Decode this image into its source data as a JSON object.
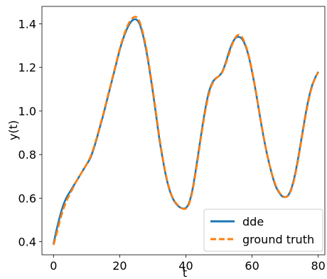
{
  "chart_data": {
    "type": "line",
    "xlabel": "t",
    "ylabel": "y(t)",
    "xlim": [
      -3.5,
      82
    ],
    "ylim": [
      0.34,
      1.48
    ],
    "x_ticks": [
      "0",
      "20",
      "40",
      "60",
      "80"
    ],
    "y_ticks": [
      "0.4",
      "0.6",
      "0.8",
      "1.0",
      "1.2",
      "1.4"
    ],
    "grid": false,
    "legend_position": "lower-right",
    "series": [
      {
        "name": "dde",
        "color": "#1f77b4",
        "style": "solid",
        "x": [
          0,
          1,
          2,
          3,
          4,
          5,
          6,
          7,
          8,
          9,
          10,
          11,
          12,
          13,
          14,
          15,
          16,
          17,
          18,
          19,
          20,
          21,
          22,
          23,
          24,
          25,
          26,
          27,
          28,
          29,
          30,
          31,
          32,
          33,
          34,
          35,
          36,
          37,
          38,
          39,
          40,
          41,
          42,
          43,
          44,
          45,
          46,
          47,
          48,
          49,
          50,
          51,
          52,
          53,
          54,
          55,
          56,
          57,
          58,
          59,
          60,
          61,
          62,
          63,
          64,
          65,
          66,
          67,
          68,
          69,
          70,
          71,
          72,
          73,
          74,
          75,
          76,
          77,
          78,
          79,
          80
        ],
        "y": [
          0.39,
          0.46,
          0.52,
          0.57,
          0.605,
          0.63,
          0.655,
          0.68,
          0.705,
          0.73,
          0.755,
          0.78,
          0.82,
          0.87,
          0.925,
          0.98,
          1.04,
          1.1,
          1.16,
          1.22,
          1.28,
          1.33,
          1.37,
          1.4,
          1.418,
          1.42,
          1.4,
          1.35,
          1.28,
          1.19,
          1.09,
          0.98,
          0.87,
          0.78,
          0.7,
          0.64,
          0.6,
          0.575,
          0.56,
          0.553,
          0.555,
          0.58,
          0.64,
          0.73,
          0.83,
          0.93,
          1.02,
          1.09,
          1.13,
          1.15,
          1.16,
          1.18,
          1.22,
          1.27,
          1.31,
          1.335,
          1.34,
          1.33,
          1.3,
          1.25,
          1.18,
          1.1,
          1.01,
          0.92,
          0.84,
          0.77,
          0.71,
          0.66,
          0.63,
          0.61,
          0.605,
          0.615,
          0.65,
          0.71,
          0.79,
          0.88,
          0.97,
          1.05,
          1.11,
          1.15,
          1.18
        ]
      },
      {
        "name": "ground truth",
        "color": "#ff7f0e",
        "style": "dashed",
        "x": [
          0,
          1,
          2,
          3,
          4,
          5,
          6,
          7,
          8,
          9,
          10,
          11,
          12,
          13,
          14,
          15,
          16,
          17,
          18,
          19,
          20,
          21,
          22,
          23,
          24,
          25,
          26,
          27,
          28,
          29,
          30,
          31,
          32,
          33,
          34,
          35,
          36,
          37,
          38,
          39,
          40,
          41,
          42,
          43,
          44,
          45,
          46,
          47,
          48,
          49,
          50,
          51,
          52,
          53,
          54,
          55,
          56,
          57,
          58,
          59,
          60,
          61,
          62,
          63,
          64,
          65,
          66,
          67,
          68,
          69,
          70,
          71,
          72,
          73,
          74,
          75,
          76,
          77,
          78,
          79,
          80
        ],
        "y": [
          0.385,
          0.44,
          0.5,
          0.55,
          0.59,
          0.62,
          0.65,
          0.68,
          0.705,
          0.73,
          0.755,
          0.785,
          0.825,
          0.875,
          0.93,
          0.985,
          1.045,
          1.105,
          1.165,
          1.225,
          1.285,
          1.335,
          1.378,
          1.41,
          1.428,
          1.432,
          1.41,
          1.36,
          1.29,
          1.2,
          1.1,
          0.99,
          0.88,
          0.785,
          0.705,
          0.645,
          0.603,
          0.578,
          0.562,
          0.552,
          0.552,
          0.575,
          0.633,
          0.72,
          0.82,
          0.92,
          1.01,
          1.08,
          1.125,
          1.148,
          1.16,
          1.178,
          1.215,
          1.26,
          1.305,
          1.338,
          1.35,
          1.338,
          1.305,
          1.255,
          1.185,
          1.105,
          1.015,
          0.925,
          0.843,
          0.772,
          0.713,
          0.665,
          0.633,
          0.613,
          0.605,
          0.612,
          0.645,
          0.703,
          0.782,
          0.872,
          0.962,
          1.042,
          1.105,
          1.148,
          1.178
        ]
      }
    ]
  }
}
